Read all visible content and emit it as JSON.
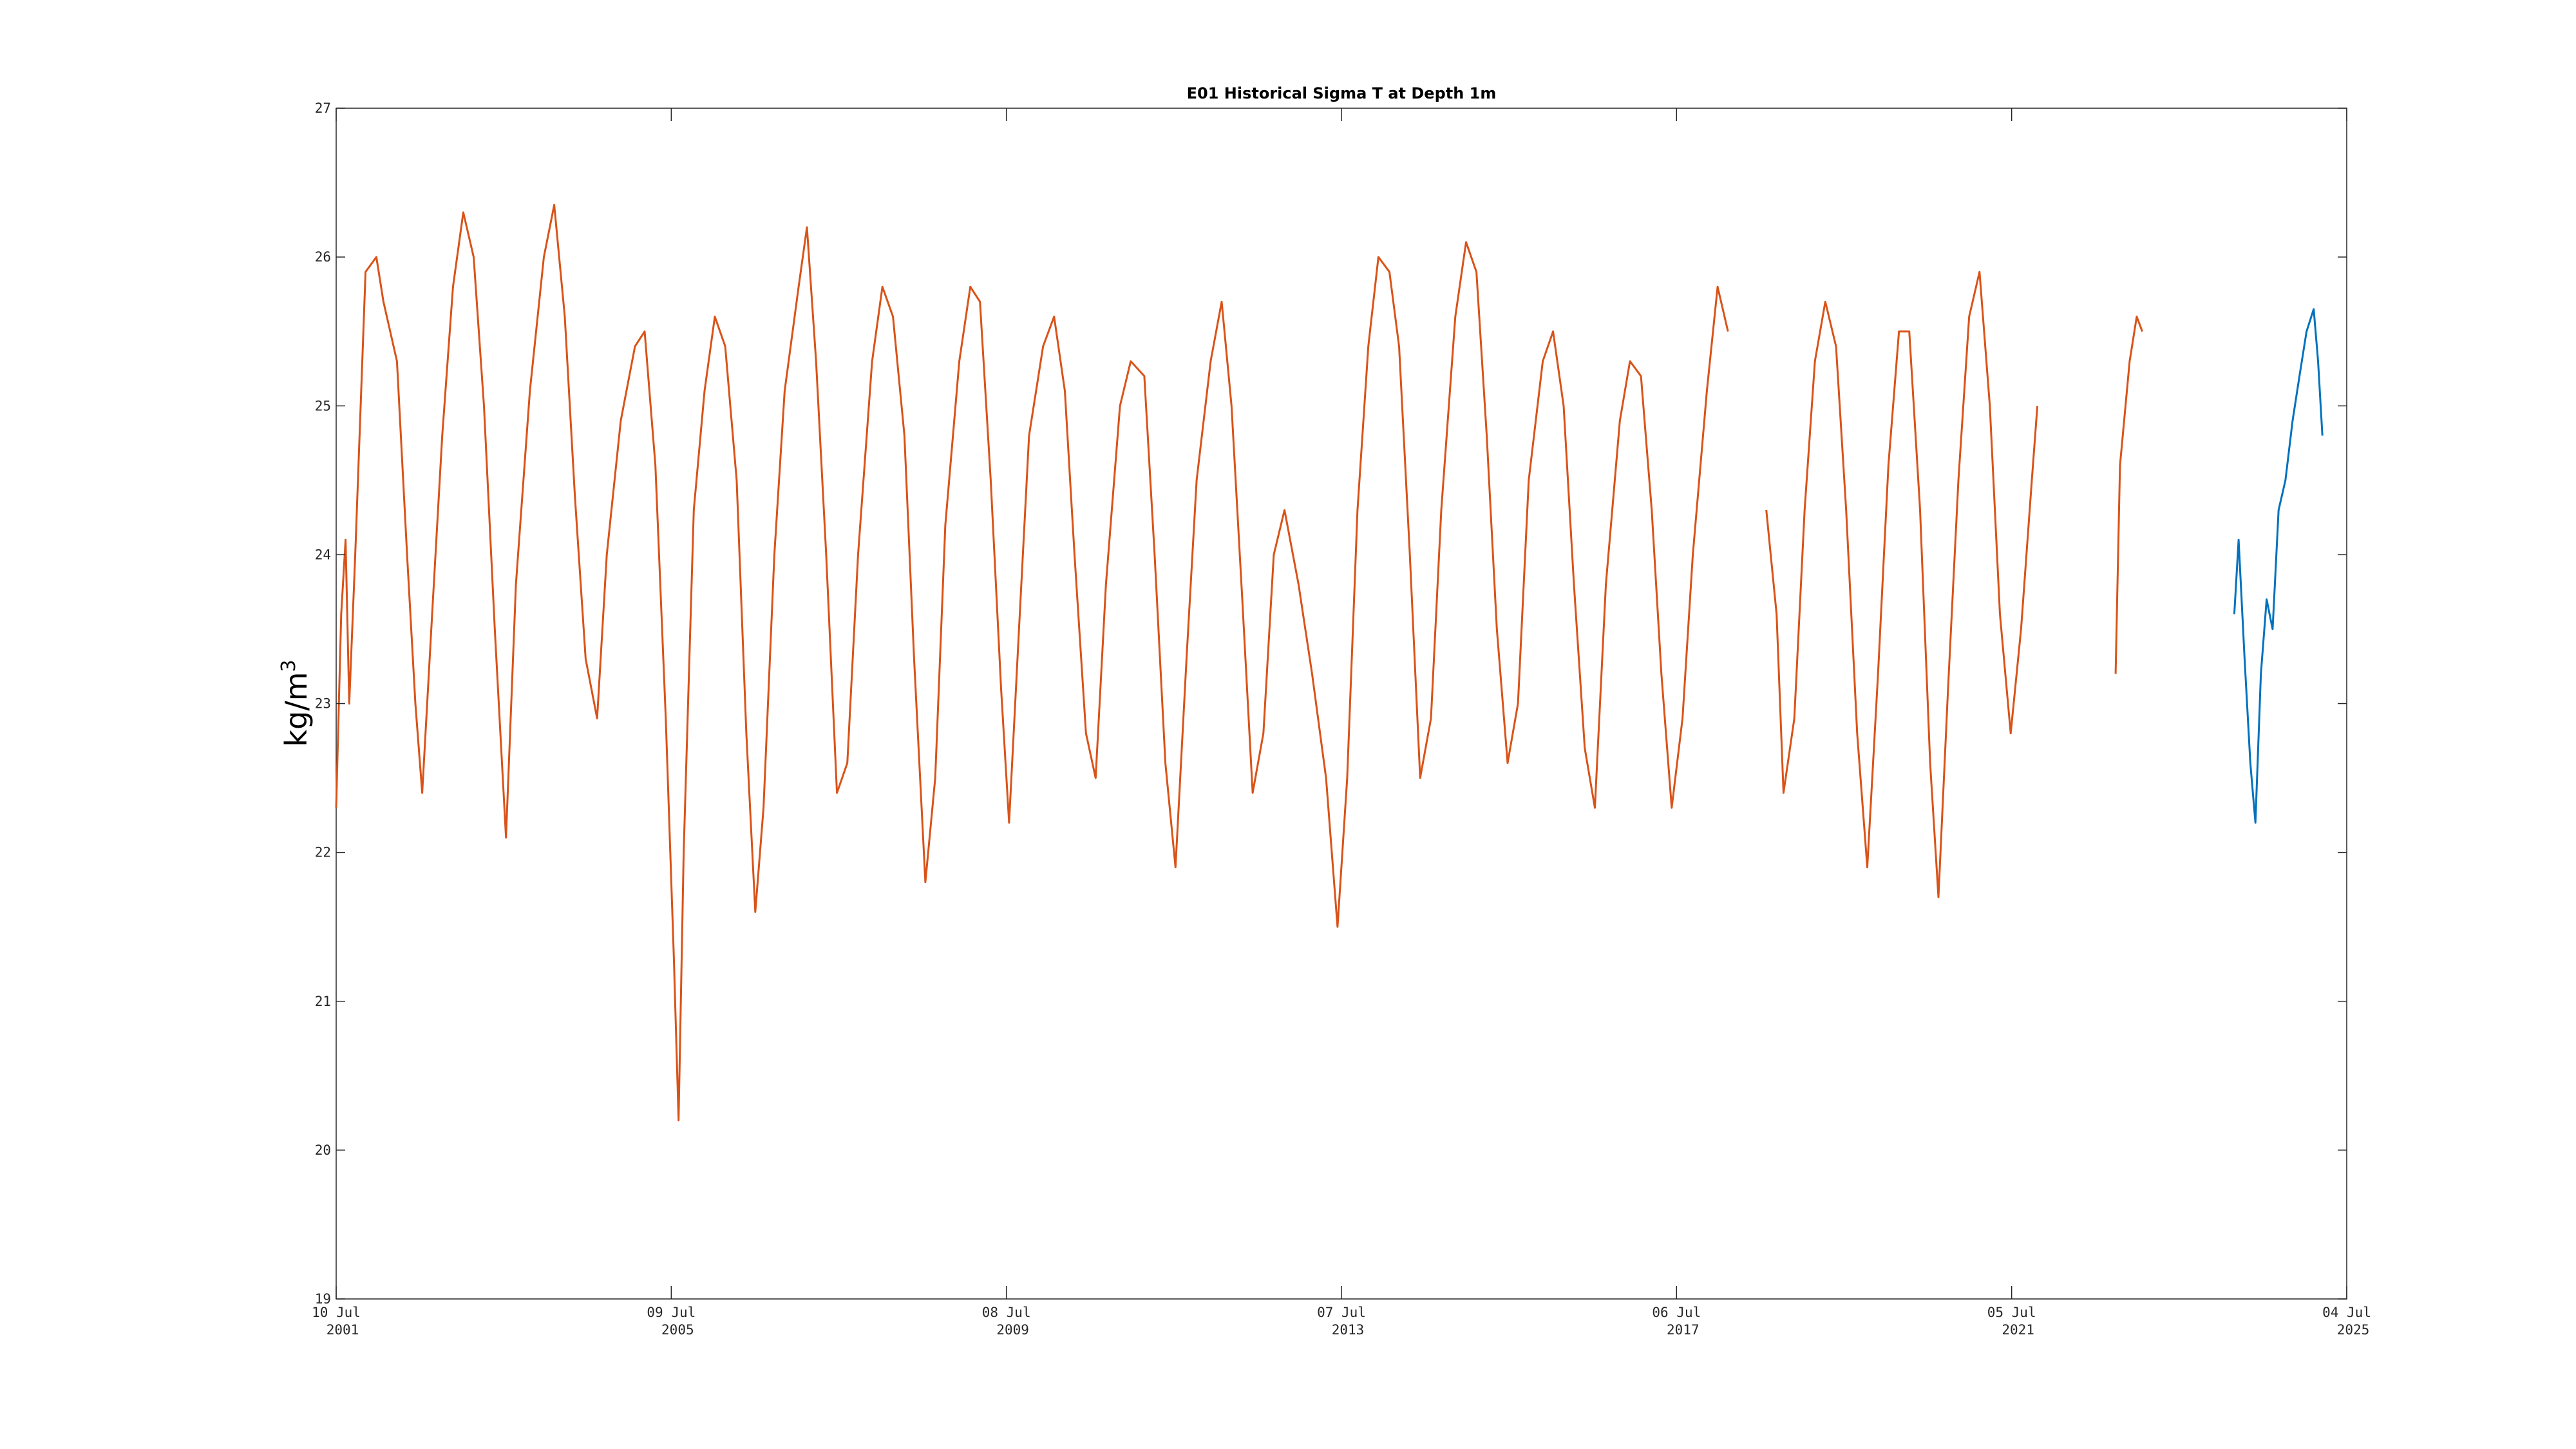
{
  "chart_data": {
    "type": "line",
    "title": "E01 Historical Sigma T at Depth 1m",
    "xlabel": "",
    "ylabel": "kg/m",
    "ylabel_superscript": "3",
    "xlim": [
      "2001-07-10",
      "2025-07-04"
    ],
    "ylim": [
      19,
      27
    ],
    "grid": false,
    "legend": "none",
    "y_ticks": [
      19,
      20,
      21,
      22,
      23,
      24,
      25,
      26,
      27
    ],
    "x_ticks": [
      {
        "date": "2001-07-10",
        "line1": "10 Jul",
        "line2": "2001"
      },
      {
        "date": "2005-07-09",
        "line1": "09 Jul",
        "line2": "2005"
      },
      {
        "date": "2009-07-08",
        "line1": "08 Jul",
        "line2": "2009"
      },
      {
        "date": "2013-07-07",
        "line1": "07 Jul",
        "line2": "2013"
      },
      {
        "date": "2017-07-06",
        "line1": "06 Jul",
        "line2": "2017"
      },
      {
        "date": "2021-07-05",
        "line1": "05 Jul",
        "line2": "2021"
      },
      {
        "date": "2025-07-04",
        "line1": "04 Jul",
        "line2": "2025"
      }
    ],
    "series": [
      {
        "color": "#D95319",
        "segments": [
          [
            [
              "2001-07-10",
              22.3
            ],
            [
              "2001-08-01",
              23.6
            ],
            [
              "2001-08-20",
              24.1
            ],
            [
              "2001-09-05",
              23.0
            ],
            [
              "2001-10-01",
              24.0
            ],
            [
              "2001-11-15",
              25.9
            ],
            [
              "2002-01-01",
              26.0
            ],
            [
              "2002-02-01",
              25.7
            ],
            [
              "2002-04-01",
              25.3
            ],
            [
              "2002-05-15",
              24.0
            ],
            [
              "2002-06-20",
              23.0
            ],
            [
              "2002-07-20",
              22.4
            ],
            [
              "2002-09-01",
              23.6
            ],
            [
              "2002-10-15",
              24.8
            ],
            [
              "2002-12-01",
              25.8
            ],
            [
              "2003-01-15",
              26.3
            ],
            [
              "2003-03-01",
              26.0
            ],
            [
              "2003-04-15",
              25.0
            ],
            [
              "2003-06-01",
              23.5
            ],
            [
              "2003-07-20",
              22.1
            ],
            [
              "2003-09-01",
              23.8
            ],
            [
              "2003-11-01",
              25.1
            ],
            [
              "2004-01-01",
              26.0
            ],
            [
              "2004-02-15",
              26.35
            ],
            [
              "2004-04-01",
              25.6
            ],
            [
              "2004-05-15",
              24.4
            ],
            [
              "2004-07-01",
              23.3
            ],
            [
              "2004-08-20",
              22.9
            ],
            [
              "2004-10-01",
              24.0
            ],
            [
              "2004-12-01",
              24.9
            ],
            [
              "2005-02-01",
              25.4
            ],
            [
              "2005-03-15",
              25.5
            ],
            [
              "2005-05-01",
              24.6
            ],
            [
              "2005-06-15",
              22.9
            ],
            [
              "2005-07-20",
              21.3
            ],
            [
              "2005-08-10",
              20.2
            ],
            [
              "2005-09-01",
              22.0
            ],
            [
              "2005-10-15",
              24.3
            ],
            [
              "2005-12-01",
              25.1
            ],
            [
              "2006-01-15",
              25.6
            ],
            [
              "2006-03-01",
              25.4
            ],
            [
              "2006-04-20",
              24.5
            ],
            [
              "2006-06-01",
              22.8
            ],
            [
              "2006-07-10",
              21.6
            ],
            [
              "2006-08-15",
              22.3
            ],
            [
              "2006-10-01",
              24.0
            ],
            [
              "2006-11-15",
              25.1
            ],
            [
              "2007-01-15",
              25.8
            ],
            [
              "2007-02-20",
              26.2
            ],
            [
              "2007-04-01",
              25.3
            ],
            [
              "2007-05-15",
              24.0
            ],
            [
              "2007-07-01",
              22.4
            ],
            [
              "2007-08-15",
              22.6
            ],
            [
              "2007-10-01",
              24.0
            ],
            [
              "2007-12-01",
              25.3
            ],
            [
              "2008-01-15",
              25.8
            ],
            [
              "2008-03-01",
              25.6
            ],
            [
              "2008-04-20",
              24.8
            ],
            [
              "2008-06-01",
              23.3
            ],
            [
              "2008-07-20",
              21.8
            ],
            [
              "2008-09-01",
              22.5
            ],
            [
              "2008-10-15",
              24.2
            ],
            [
              "2008-12-15",
              25.3
            ],
            [
              "2009-02-01",
              25.8
            ],
            [
              "2009-03-15",
              25.7
            ],
            [
              "2009-05-01",
              24.5
            ],
            [
              "2009-06-15",
              23.1
            ],
            [
              "2009-07-20",
              22.2
            ],
            [
              "2009-09-01",
              23.5
            ],
            [
              "2009-10-15",
              24.8
            ],
            [
              "2009-12-15",
              25.4
            ],
            [
              "2010-02-01",
              25.6
            ],
            [
              "2010-03-20",
              25.1
            ],
            [
              "2010-05-01",
              24.0
            ],
            [
              "2010-06-20",
              22.8
            ],
            [
              "2010-08-01",
              22.5
            ],
            [
              "2010-09-15",
              23.8
            ],
            [
              "2010-11-15",
              25.0
            ],
            [
              "2011-01-01",
              25.3
            ],
            [
              "2011-03-01",
              25.2
            ],
            [
              "2011-04-15",
              24.0
            ],
            [
              "2011-06-01",
              22.6
            ],
            [
              "2011-07-15",
              21.9
            ],
            [
              "2011-09-01",
              23.3
            ],
            [
              "2011-10-15",
              24.5
            ],
            [
              "2011-12-15",
              25.3
            ],
            [
              "2012-02-01",
              25.7
            ],
            [
              "2012-03-15",
              25.0
            ],
            [
              "2012-05-01",
              23.7
            ],
            [
              "2012-06-15",
              22.4
            ],
            [
              "2012-08-01",
              22.8
            ],
            [
              "2012-09-15",
              24.0
            ],
            [
              "2012-11-01",
              24.3
            ],
            [
              "2013-01-01",
              23.8
            ],
            [
              "2013-03-01",
              23.2
            ],
            [
              "2013-05-01",
              22.5
            ],
            [
              "2013-06-20",
              21.5
            ],
            [
              "2013-08-01",
              22.5
            ],
            [
              "2013-09-15",
              24.3
            ],
            [
              "2013-11-01",
              25.4
            ],
            [
              "2013-12-15",
              26.0
            ],
            [
              "2014-02-01",
              25.9
            ],
            [
              "2014-03-15",
              25.4
            ],
            [
              "2014-05-01",
              24.0
            ],
            [
              "2014-06-15",
              22.5
            ],
            [
              "2014-08-01",
              22.9
            ],
            [
              "2014-09-15",
              24.3
            ],
            [
              "2014-11-15",
              25.6
            ],
            [
              "2015-01-01",
              26.1
            ],
            [
              "2015-02-15",
              25.9
            ],
            [
              "2015-04-01",
              24.8
            ],
            [
              "2015-05-15",
              23.5
            ],
            [
              "2015-07-01",
              22.6
            ],
            [
              "2015-08-15",
              23.0
            ],
            [
              "2015-10-01",
              24.5
            ],
            [
              "2015-12-01",
              25.3
            ],
            [
              "2016-01-15",
              25.5
            ],
            [
              "2016-03-01",
              25.0
            ],
            [
              "2016-04-15",
              23.8
            ],
            [
              "2016-06-01",
              22.7
            ],
            [
              "2016-07-15",
              22.3
            ],
            [
              "2016-09-01",
              23.8
            ],
            [
              "2016-11-01",
              24.9
            ],
            [
              "2016-12-15",
              25.3
            ],
            [
              "2017-02-01",
              25.2
            ],
            [
              "2017-03-20",
              24.3
            ],
            [
              "2017-05-01",
              23.2
            ],
            [
              "2017-06-15",
              22.3
            ],
            [
              "2017-08-01",
              22.9
            ],
            [
              "2017-09-15",
              24.0
            ],
            [
              "2017-11-15",
              25.1
            ],
            [
              "2018-01-01",
              25.8
            ],
            [
              "2018-02-15",
              25.5
            ]
          ],
          [
            [
              "2018-08-01",
              24.3
            ],
            [
              "2018-09-15",
              23.6
            ],
            [
              "2018-10-15",
              22.4
            ],
            [
              "2018-12-01",
              22.9
            ],
            [
              "2019-01-15",
              24.3
            ],
            [
              "2019-03-01",
              25.3
            ],
            [
              "2019-04-15",
              25.7
            ],
            [
              "2019-06-01",
              25.4
            ],
            [
              "2019-07-15",
              24.3
            ],
            [
              "2019-09-01",
              22.8
            ],
            [
              "2019-10-15",
              21.9
            ],
            [
              "2019-12-01",
              23.2
            ],
            [
              "2020-01-15",
              24.6
            ],
            [
              "2020-03-01",
              25.5
            ],
            [
              "2020-04-15",
              25.5
            ],
            [
              "2020-06-01",
              24.3
            ],
            [
              "2020-07-15",
              22.6
            ],
            [
              "2020-08-20",
              21.7
            ],
            [
              "2020-10-01",
              23.1
            ],
            [
              "2020-11-15",
              24.5
            ],
            [
              "2021-01-01",
              25.6
            ],
            [
              "2021-02-15",
              25.9
            ],
            [
              "2021-04-01",
              25.0
            ],
            [
              "2021-05-15",
              23.6
            ],
            [
              "2021-07-01",
              22.8
            ],
            [
              "2021-08-15",
              23.5
            ],
            [
              "2021-10-01",
              24.5
            ],
            [
              "2021-10-25",
              25.0
            ]
          ],
          [
            [
              "2022-10-01",
              23.2
            ],
            [
              "2022-10-20",
              24.6
            ],
            [
              "2022-12-01",
              25.3
            ],
            [
              "2023-01-01",
              25.6
            ],
            [
              "2023-01-25",
              25.5
            ]
          ]
        ]
      },
      {
        "color": "#0072BD",
        "segments": [
          [
            [
              "2024-03-01",
              23.6
            ],
            [
              "2024-03-20",
              24.1
            ],
            [
              "2024-04-15",
              23.3
            ],
            [
              "2024-05-10",
              22.6
            ],
            [
              "2024-06-01",
              22.2
            ],
            [
              "2024-06-25",
              23.2
            ],
            [
              "2024-07-20",
              23.7
            ],
            [
              "2024-08-15",
              23.5
            ],
            [
              "2024-09-10",
              24.3
            ],
            [
              "2024-10-10",
              24.5
            ],
            [
              "2024-11-10",
              24.9
            ],
            [
              "2024-12-10",
              25.2
            ],
            [
              "2025-01-10",
              25.5
            ],
            [
              "2025-02-10",
              25.65
            ],
            [
              "2025-03-01",
              25.3
            ],
            [
              "2025-03-20",
              24.8
            ]
          ]
        ]
      }
    ]
  }
}
